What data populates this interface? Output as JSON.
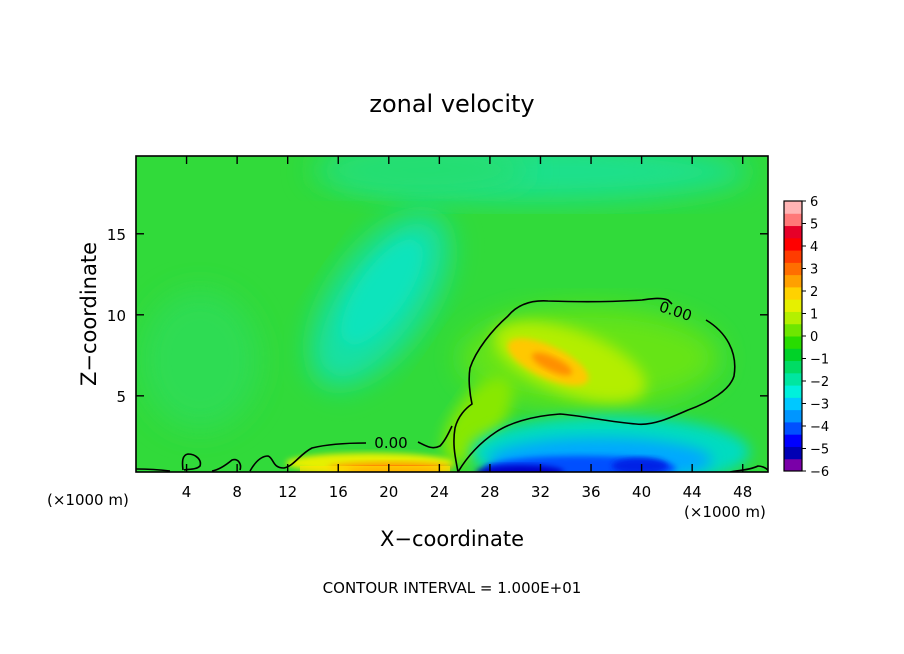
{
  "chart_data": {
    "type": "heatmap",
    "title": "zonal velocity",
    "xlabel": "X−coordinate",
    "ylabel": "Z−coordinate",
    "x_unit_left": "(×1000 m)",
    "x_unit_right": "(×1000 m)",
    "footer": "CONTOUR INTERVAL = 1.000E+01",
    "xlim": [
      0,
      50
    ],
    "ylim": [
      0.3,
      19.8
    ],
    "x_ticks": [
      {
        "value": 4,
        "label": "4"
      },
      {
        "value": 8,
        "label": "8"
      },
      {
        "value": 12,
        "label": "12"
      },
      {
        "value": 16,
        "label": "16"
      },
      {
        "value": 20,
        "label": "20"
      },
      {
        "value": 24,
        "label": "24"
      },
      {
        "value": 28,
        "label": "28"
      },
      {
        "value": 32,
        "label": "32"
      },
      {
        "value": 36,
        "label": "36"
      },
      {
        "value": 40,
        "label": "40"
      },
      {
        "value": 44,
        "label": "44"
      },
      {
        "value": 48,
        "label": "48"
      }
    ],
    "y_ticks": [
      {
        "value": 5,
        "label": "5"
      },
      {
        "value": 10,
        "label": "10"
      },
      {
        "value": 15,
        "label": "15"
      }
    ],
    "colorbar": {
      "min": -6,
      "max": 6,
      "labels": [
        "6",
        "5",
        "4",
        "3",
        "2",
        "1",
        "0",
        "−1",
        "−2",
        "−3",
        "−4",
        "−5",
        "−6"
      ],
      "label_values": [
        6,
        5,
        4,
        3,
        2,
        1,
        0,
        -1,
        -2,
        -3,
        -4,
        -5,
        -6
      ],
      "colors": [
        "#7a00a8",
        "#0000b4",
        "#0000ff",
        "#0050ff",
        "#0096ff",
        "#00c8ff",
        "#00f0dc",
        "#00e6a0",
        "#00dc64",
        "#00d228",
        "#28dc00",
        "#6ee600",
        "#b4f000",
        "#e6f000",
        "#ffd200",
        "#ffa000",
        "#ff6e00",
        "#ff3c00",
        "#ff0000",
        "#e60028",
        "#ff7878",
        "#ffb4b4"
      ]
    },
    "contours": [
      {
        "label": "0.00",
        "label_x": 24.5,
        "label_z": 1.8
      },
      {
        "label": "0.00",
        "label_x": 41.5,
        "label_z": 10.3
      }
    ],
    "features": [
      {
        "name": "upper easterly weak",
        "x": 31,
        "z": 19,
        "value": -1.3
      },
      {
        "name": "mid tilted negative",
        "x": 18.5,
        "z": 11,
        "value": -1.5
      },
      {
        "name": "positive core",
        "x": 32.5,
        "z": 7,
        "value": 3.0
      },
      {
        "name": "surface westward jet",
        "x": 34,
        "z": 0.6,
        "value": -5.0
      },
      {
        "name": "surface eastward jet",
        "x": 21,
        "z": 0.3,
        "value": 4.5
      }
    ]
  }
}
